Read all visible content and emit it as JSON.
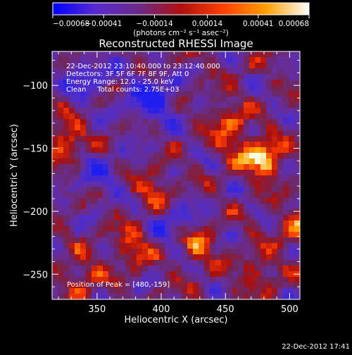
{
  "chart_data": {
    "type": "heatmap",
    "title": "Reconstructed RHESSI Image",
    "xlabel": "Heliocentric X (arcsec)",
    "ylabel": "Heliocentric Y (arcsec)",
    "xlim": [
      315,
      508
    ],
    "ylim": [
      -270,
      -73
    ],
    "x_ticks": [
      {
        "value": 350,
        "label": "350"
      },
      {
        "value": 400,
        "label": "400"
      },
      {
        "value": 450,
        "label": "450"
      },
      {
        "value": 500,
        "label": "500"
      }
    ],
    "y_ticks": [
      {
        "value": -100,
        "label": "−100"
      },
      {
        "value": -150,
        "label": "−150"
      },
      {
        "value": -200,
        "label": "−200"
      },
      {
        "value": -250,
        "label": "−250"
      }
    ],
    "colorbar": {
      "range": [
        -0.00068,
        0.00068
      ],
      "ticks": [
        {
          "value": -0.00068,
          "label": "−0.00068"
        },
        {
          "value": -0.00041,
          "label": "−0.00041"
        },
        {
          "value": -0.00014,
          "label": "−0.00014"
        },
        {
          "value": 0.00014,
          "label": "0.00014"
        },
        {
          "value": 0.00041,
          "label": "0.00041"
        },
        {
          "value": 0.00068,
          "label": "0.00068"
        }
      ],
      "unit_label": "(photons cm⁻² s⁻¹ asec⁻²)",
      "colors": [
        "#0000ff",
        "#5a2ad0",
        "#6a2a8a",
        "#b01010",
        "#ff4000",
        "#ffa000",
        "#ffffff"
      ]
    },
    "annotations": [
      "22-Dec-2012 23:10:40.000 to 23:12:40.000",
      "Detectors: 3F 5F 6F 7F 8F 9F, Att 0",
      "Energy Range: 12.0 - 25.0 keV",
      "Clean     Total counts: 2.75E+03"
    ],
    "peak_label": "Position of Peak = [480,-159]",
    "peak": {
      "x": 480,
      "y": -159
    },
    "bright_sources": [
      {
        "x": 480,
        "y": -159,
        "level": 1.0
      },
      {
        "x": 326,
        "y": -143,
        "level": 0.75
      },
      {
        "x": 378,
        "y": -228,
        "level": 0.62
      },
      {
        "x": 428,
        "y": -227,
        "level": 0.68
      },
      {
        "x": 394,
        "y": -183,
        "level": 0.55
      },
      {
        "x": 452,
        "y": -126,
        "level": 0.5
      },
      {
        "x": 458,
        "y": -147,
        "level": 0.45
      },
      {
        "x": 338,
        "y": -252,
        "level": 0.5
      },
      {
        "x": 475,
        "y": -248,
        "level": 0.45
      },
      {
        "x": 502,
        "y": -214,
        "level": 0.5
      }
    ],
    "dim_regions": [
      {
        "x": 392,
        "y": -112,
        "level": -0.9
      },
      {
        "x": 342,
        "y": -94,
        "level": -0.6
      },
      {
        "x": 412,
        "y": -210,
        "level": -0.55
      },
      {
        "x": 352,
        "y": -172,
        "level": -0.5
      }
    ]
  },
  "footer": {
    "timestamp": "22-Dec-2012 17:41"
  }
}
